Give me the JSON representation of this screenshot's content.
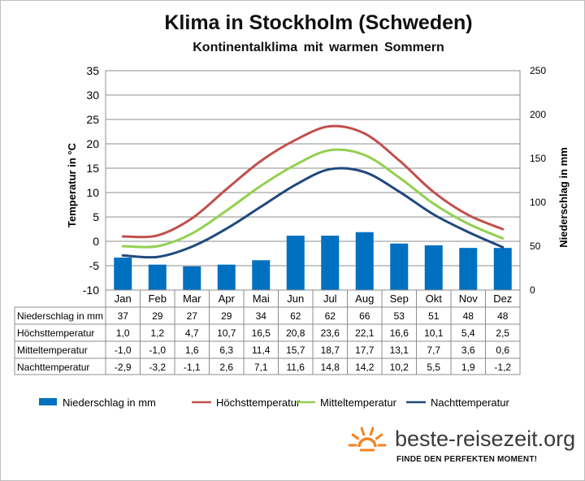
{
  "chart_data": {
    "type": "bar+line",
    "title": "Klima in Stockholm (Schweden)",
    "subtitle": "Kontinentalklima mit warmen Sommern",
    "ylabel_left": "Temperatur in °C",
    "ylabel_right": "Niederschlag in mm",
    "ylim_left": [
      -10,
      35
    ],
    "yticks_left": [
      "35",
      "30",
      "25",
      "20",
      "15",
      "10",
      "5",
      "0",
      "-5",
      "-10"
    ],
    "ylim_right": [
      0,
      250
    ],
    "yticks_right": [
      "250",
      "200",
      "150",
      "100",
      "50",
      "0"
    ],
    "grid": true,
    "legend_position": "bottom",
    "categories": [
      "Jan",
      "Feb",
      "Mar",
      "Apr",
      "Mai",
      "Jun",
      "Jul",
      "Aug",
      "Sep",
      "Okt",
      "Nov",
      "Dez"
    ],
    "series": [
      {
        "name": "Niederschlag in mm",
        "type": "bar",
        "axis": "right",
        "color": "#0070c0",
        "values": [
          37,
          29,
          27,
          29,
          34,
          62,
          62,
          66,
          53,
          51,
          48,
          48
        ],
        "labels": [
          "37",
          "29",
          "27",
          "29",
          "34",
          "62",
          "62",
          "66",
          "53",
          "51",
          "48",
          "48"
        ]
      },
      {
        "name": "Höchsttemperatur",
        "type": "line",
        "axis": "left",
        "color": "#c0504d",
        "values": [
          1.0,
          1.2,
          4.7,
          10.7,
          16.5,
          20.8,
          23.6,
          22.1,
          16.6,
          10.1,
          5.4,
          2.5
        ],
        "labels": [
          "1,0",
          "1,2",
          "4,7",
          "10,7",
          "16,5",
          "20,8",
          "23,6",
          "22,1",
          "16,6",
          "10,1",
          "5,4",
          "2,5"
        ]
      },
      {
        "name": "Mitteltemperatur",
        "type": "line",
        "axis": "left",
        "color": "#92d050",
        "values": [
          -1.0,
          -1.0,
          1.6,
          6.3,
          11.4,
          15.7,
          18.7,
          17.7,
          13.1,
          7.7,
          3.6,
          0.6
        ],
        "labels": [
          "-1,0",
          "-1,0",
          "1,6",
          "6,3",
          "11,4",
          "15,7",
          "18,7",
          "17,7",
          "13,1",
          "7,7",
          "3,6",
          "0,6"
        ]
      },
      {
        "name": "Nachttemperatur",
        "type": "line",
        "axis": "left",
        "color": "#1f497d",
        "values": [
          -2.9,
          -3.2,
          -1.1,
          2.6,
          7.1,
          11.6,
          14.8,
          14.2,
          10.2,
          5.5,
          1.9,
          -1.2
        ],
        "labels": [
          "-2,9",
          "-3,2",
          "-1,1",
          "2,6",
          "7,1",
          "11,6",
          "14,8",
          "14,2",
          "10,2",
          "5,5",
          "1,9",
          "-1,2"
        ]
      }
    ]
  },
  "branding": {
    "site": "beste-reisezeit.org",
    "tagline": "FINDE DEN PERFEKTEN MOMENT!",
    "sun_color": "#f58220",
    "logo_icon": "sun-icon"
  }
}
